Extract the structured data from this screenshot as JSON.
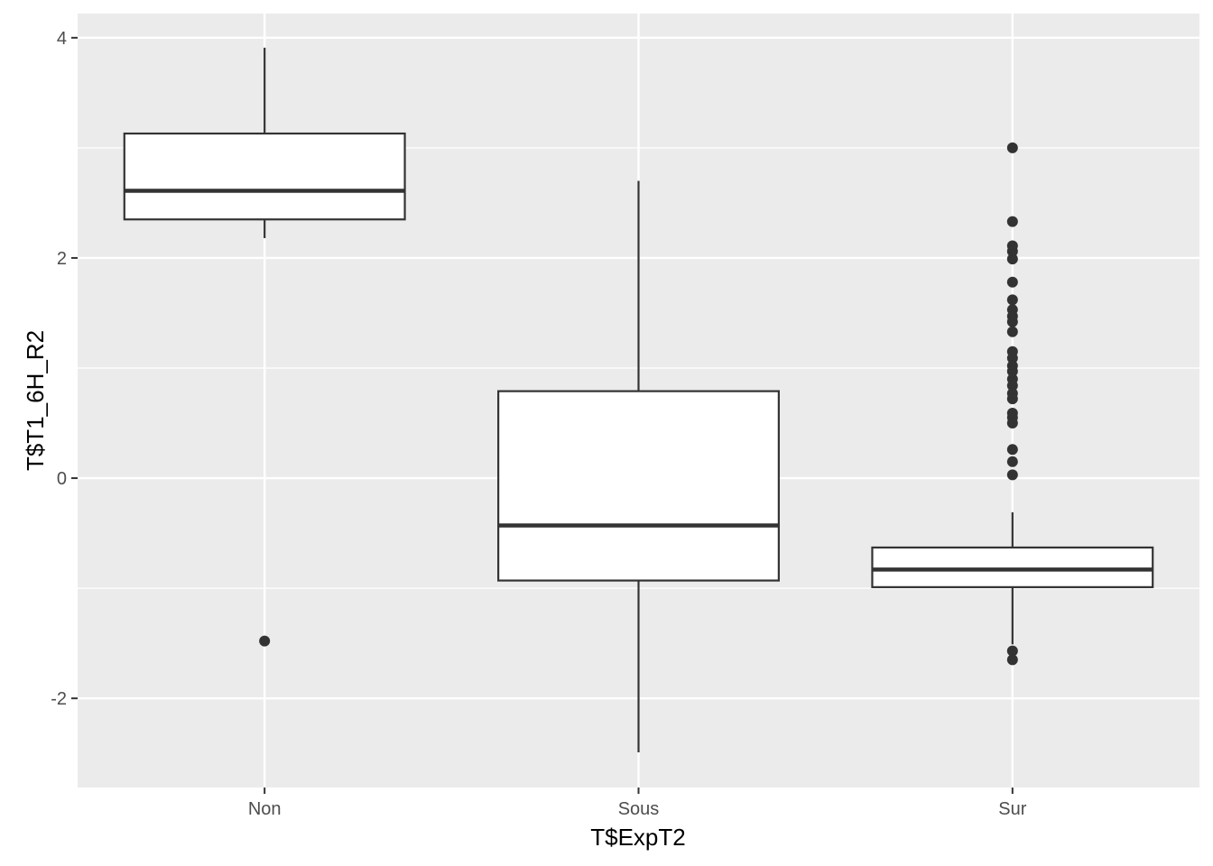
{
  "chart_data": {
    "type": "boxplot",
    "title": "",
    "xlabel": "T$ExpT2",
    "ylabel": "T$T1_6H_R2",
    "ylim": [
      -2.81,
      4.22
    ],
    "yticks": [
      -2,
      0,
      2,
      4
    ],
    "ytick_labels": [
      "-2",
      "0",
      "2",
      "4"
    ],
    "grid": true,
    "colors": {
      "panel": "#EBEBEB",
      "grid": "#FFFFFF",
      "box_fill": "#FFFFFF",
      "line": "#333333",
      "tick_text": "#4D4D4D"
    },
    "categories": [
      "Non",
      "Sous",
      "Sur"
    ],
    "boxes": [
      {
        "category": "Non",
        "whisker_low": 2.18,
        "q1": 2.35,
        "median": 2.61,
        "q3": 3.13,
        "whisker_high": 3.91,
        "outliers": [
          -1.48
        ]
      },
      {
        "category": "Sous",
        "whisker_low": -2.49,
        "q1": -0.93,
        "median": -0.43,
        "q3": 0.79,
        "whisker_high": 2.7,
        "outliers": []
      },
      {
        "category": "Sur",
        "whisker_low": -1.51,
        "q1": -0.99,
        "median": -0.83,
        "q3": -0.63,
        "whisker_high": -0.31,
        "outliers": [
          3.0,
          2.33,
          2.11,
          2.06,
          1.99,
          1.78,
          1.62,
          1.53,
          1.47,
          1.42,
          1.33,
          1.15,
          1.09,
          1.02,
          0.97,
          0.9,
          0.84,
          0.77,
          0.72,
          0.59,
          0.55,
          0.5,
          0.26,
          0.15,
          0.03,
          -1.57,
          -1.65
        ]
      }
    ]
  }
}
